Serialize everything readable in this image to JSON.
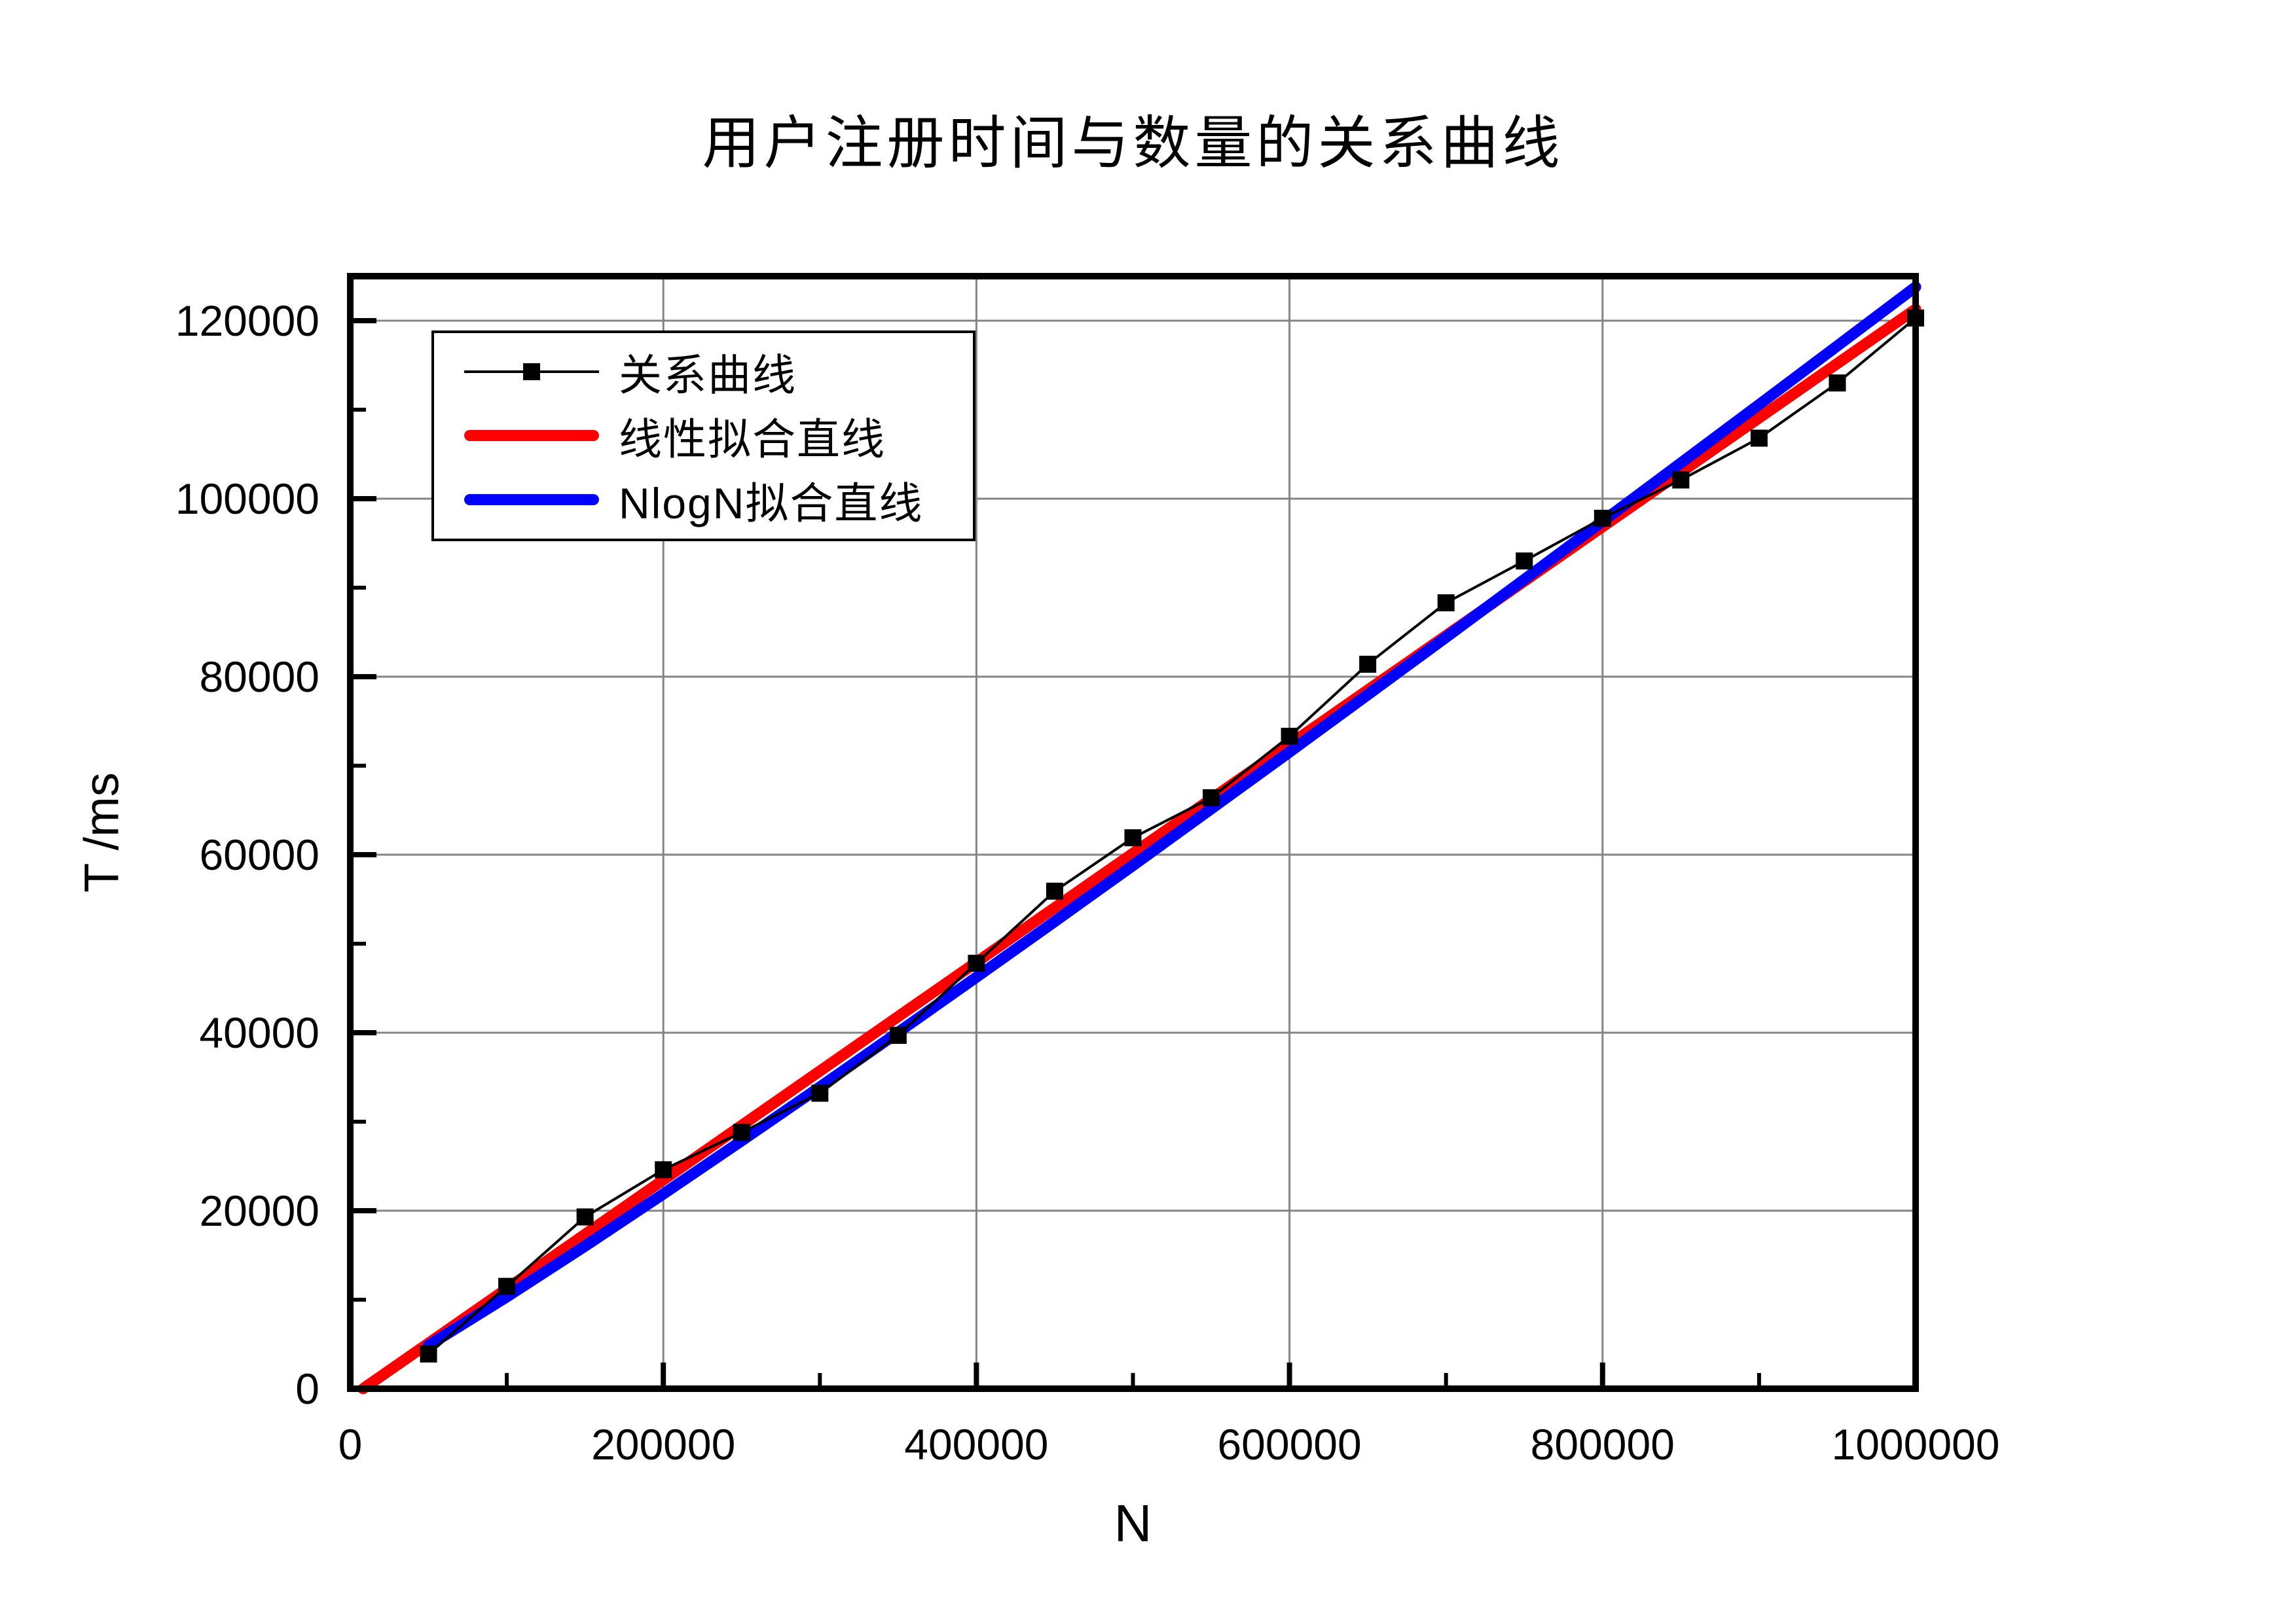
{
  "title": "用户注册时间与数量的关系曲线",
  "x_axis": {
    "title": "N",
    "min": 0,
    "max": 1000000,
    "major_ticks": [
      0,
      200000,
      400000,
      600000,
      800000,
      1000000
    ],
    "tick_labels": [
      "0",
      "200000",
      "400000",
      "600000",
      "800000",
      "1000000"
    ],
    "minor_ticks": [
      100000,
      300000,
      500000,
      700000,
      900000
    ]
  },
  "y_axis": {
    "title": "T /ms",
    "min": 0,
    "max": 125000,
    "major_ticks": [
      0,
      20000,
      40000,
      60000,
      80000,
      100000,
      120000
    ],
    "tick_labels": [
      "0",
      "20000",
      "40000",
      "60000",
      "80000",
      "100000",
      "120000"
    ],
    "minor_ticks": [
      10000,
      30000,
      50000,
      70000,
      90000,
      110000
    ]
  },
  "legend": {
    "items": [
      {
        "label": "关系曲线",
        "sample": "line-with-square-marker",
        "color": "#000000"
      },
      {
        "label": "线性拟合直线",
        "sample": "thick-line",
        "color": "#FF0000"
      },
      {
        "label": "NlogN拟合直线",
        "sample": "thick-line",
        "color": "#0000FF"
      }
    ]
  },
  "colors": {
    "grid": "#848484",
    "frame": "#000000",
    "background": "#ffffff"
  },
  "chart_data": {
    "type": "line",
    "title": "用户注册时间与数量的关系曲线",
    "xlabel": "N",
    "ylabel": "T /ms",
    "xlim": [
      0,
      1000000
    ],
    "ylim": [
      0,
      125000
    ],
    "grid": true,
    "legend_position": "top-left",
    "series": [
      {
        "name": "关系曲线",
        "style": "line+marker",
        "marker": "square",
        "color": "#000000",
        "line_width": 4,
        "marker_size": 26,
        "x": [
          50000,
          100000,
          150000,
          200000,
          250000,
          300000,
          350000,
          400000,
          450000,
          500000,
          550000,
          600000,
          650000,
          700000,
          750000,
          800000,
          850000,
          900000,
          950000,
          1000000
        ],
        "y": [
          3900,
          11500,
          19300,
          24600,
          28800,
          33200,
          39700,
          47800,
          55900,
          61900,
          66400,
          73300,
          81400,
          88300,
          93000,
          97800,
          102100,
          106800,
          113000,
          120300
        ]
      },
      {
        "name": "线性拟合直线",
        "style": "line",
        "color": "#FF0000",
        "line_width": 17,
        "x": [
          8200,
          1000000
        ],
        "y": [
          0,
          121300
        ]
      },
      {
        "name": "NlogN拟合直线",
        "style": "line",
        "color": "#0000FF",
        "line_width": 17,
        "x": [
          50000,
          100000,
          150000,
          200000,
          250000,
          300000,
          350000,
          400000,
          450000,
          500000,
          550000,
          600000,
          650000,
          700000,
          750000,
          800000,
          850000,
          900000,
          950000,
          1000000
        ],
        "y": [
          4850,
          10320,
          16020,
          21880,
          27850,
          33900,
          40040,
          46240,
          52490,
          58780,
          65150,
          71530,
          77970,
          84420,
          90920,
          97450,
          104000,
          110570,
          117170,
          123790
        ]
      }
    ]
  }
}
